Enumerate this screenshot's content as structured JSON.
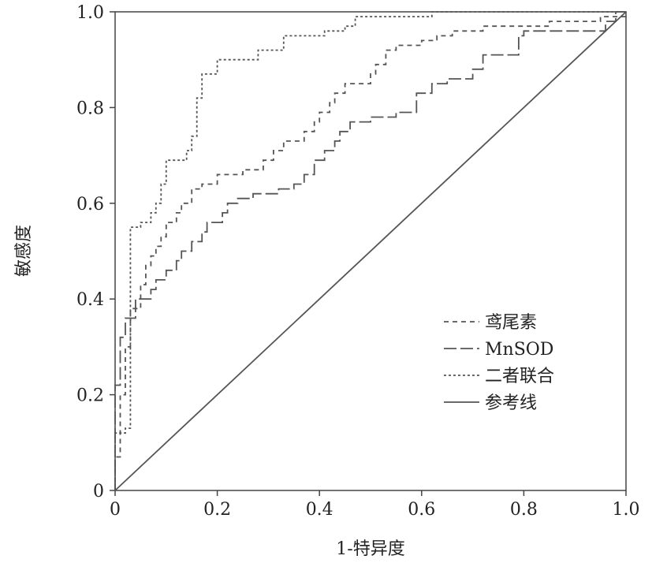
{
  "chart_data": {
    "type": "line",
    "title": "",
    "xlabel": "1-特异度",
    "ylabel": "敏感度",
    "xlim": [
      0,
      1
    ],
    "ylim": [
      0,
      1
    ],
    "x_ticks": [
      "0",
      "0.2",
      "0.4",
      "0.6",
      "0.8",
      "1.0"
    ],
    "y_ticks": [
      "0",
      "0.2",
      "0.4",
      "0.6",
      "0.8",
      "1.0"
    ],
    "grid": false,
    "legend_position": "bottom-right",
    "series": [
      {
        "name": "鸢尾素",
        "style": "dashed",
        "points": [
          [
            0,
            0
          ],
          [
            0,
            0.07
          ],
          [
            0.01,
            0.07
          ],
          [
            0.01,
            0.2
          ],
          [
            0.02,
            0.2
          ],
          [
            0.02,
            0.3
          ],
          [
            0.03,
            0.3
          ],
          [
            0.03,
            0.38
          ],
          [
            0.05,
            0.38
          ],
          [
            0.05,
            0.43
          ],
          [
            0.06,
            0.43
          ],
          [
            0.06,
            0.47
          ],
          [
            0.07,
            0.47
          ],
          [
            0.07,
            0.49
          ],
          [
            0.08,
            0.49
          ],
          [
            0.08,
            0.51
          ],
          [
            0.09,
            0.51
          ],
          [
            0.09,
            0.53
          ],
          [
            0.1,
            0.53
          ],
          [
            0.1,
            0.56
          ],
          [
            0.12,
            0.56
          ],
          [
            0.12,
            0.58
          ],
          [
            0.13,
            0.58
          ],
          [
            0.13,
            0.6
          ],
          [
            0.15,
            0.6
          ],
          [
            0.15,
            0.63
          ],
          [
            0.17,
            0.63
          ],
          [
            0.17,
            0.64
          ],
          [
            0.2,
            0.64
          ],
          [
            0.2,
            0.66
          ],
          [
            0.25,
            0.66
          ],
          [
            0.25,
            0.67
          ],
          [
            0.29,
            0.67
          ],
          [
            0.29,
            0.69
          ],
          [
            0.31,
            0.69
          ],
          [
            0.31,
            0.71
          ],
          [
            0.33,
            0.71
          ],
          [
            0.33,
            0.73
          ],
          [
            0.37,
            0.73
          ],
          [
            0.37,
            0.75
          ],
          [
            0.39,
            0.75
          ],
          [
            0.39,
            0.77
          ],
          [
            0.4,
            0.77
          ],
          [
            0.4,
            0.79
          ],
          [
            0.42,
            0.79
          ],
          [
            0.42,
            0.81
          ],
          [
            0.43,
            0.81
          ],
          [
            0.43,
            0.83
          ],
          [
            0.45,
            0.83
          ],
          [
            0.45,
            0.85
          ],
          [
            0.5,
            0.85
          ],
          [
            0.5,
            0.87
          ],
          [
            0.51,
            0.87
          ],
          [
            0.51,
            0.89
          ],
          [
            0.53,
            0.89
          ],
          [
            0.53,
            0.92
          ],
          [
            0.55,
            0.92
          ],
          [
            0.55,
            0.93
          ],
          [
            0.6,
            0.93
          ],
          [
            0.6,
            0.94
          ],
          [
            0.63,
            0.94
          ],
          [
            0.63,
            0.95
          ],
          [
            0.66,
            0.95
          ],
          [
            0.66,
            0.96
          ],
          [
            0.72,
            0.96
          ],
          [
            0.72,
            0.97
          ],
          [
            0.85,
            0.97
          ],
          [
            0.85,
            0.98
          ],
          [
            0.95,
            0.98
          ],
          [
            0.95,
            0.99
          ],
          [
            1,
            0.99
          ],
          [
            1,
            1
          ]
        ]
      },
      {
        "name": "MnSOD",
        "style": "long-dashed",
        "points": [
          [
            0,
            0
          ],
          [
            0,
            0.22
          ],
          [
            0.01,
            0.22
          ],
          [
            0.01,
            0.32
          ],
          [
            0.02,
            0.32
          ],
          [
            0.02,
            0.36
          ],
          [
            0.04,
            0.36
          ],
          [
            0.04,
            0.4
          ],
          [
            0.07,
            0.4
          ],
          [
            0.07,
            0.42
          ],
          [
            0.08,
            0.42
          ],
          [
            0.08,
            0.44
          ],
          [
            0.1,
            0.44
          ],
          [
            0.1,
            0.46
          ],
          [
            0.12,
            0.46
          ],
          [
            0.12,
            0.48
          ],
          [
            0.13,
            0.48
          ],
          [
            0.13,
            0.5
          ],
          [
            0.15,
            0.5
          ],
          [
            0.15,
            0.52
          ],
          [
            0.17,
            0.52
          ],
          [
            0.17,
            0.54
          ],
          [
            0.18,
            0.54
          ],
          [
            0.18,
            0.56
          ],
          [
            0.21,
            0.56
          ],
          [
            0.21,
            0.58
          ],
          [
            0.22,
            0.58
          ],
          [
            0.22,
            0.6
          ],
          [
            0.24,
            0.6
          ],
          [
            0.24,
            0.61
          ],
          [
            0.27,
            0.61
          ],
          [
            0.27,
            0.62
          ],
          [
            0.32,
            0.62
          ],
          [
            0.32,
            0.63
          ],
          [
            0.35,
            0.63
          ],
          [
            0.35,
            0.64
          ],
          [
            0.37,
            0.64
          ],
          [
            0.37,
            0.66
          ],
          [
            0.39,
            0.66
          ],
          [
            0.39,
            0.69
          ],
          [
            0.41,
            0.69
          ],
          [
            0.41,
            0.71
          ],
          [
            0.43,
            0.71
          ],
          [
            0.43,
            0.73
          ],
          [
            0.44,
            0.73
          ],
          [
            0.44,
            0.75
          ],
          [
            0.46,
            0.75
          ],
          [
            0.46,
            0.77
          ],
          [
            0.5,
            0.77
          ],
          [
            0.5,
            0.78
          ],
          [
            0.55,
            0.78
          ],
          [
            0.55,
            0.79
          ],
          [
            0.59,
            0.79
          ],
          [
            0.59,
            0.83
          ],
          [
            0.62,
            0.83
          ],
          [
            0.62,
            0.85
          ],
          [
            0.65,
            0.85
          ],
          [
            0.65,
            0.86
          ],
          [
            0.7,
            0.86
          ],
          [
            0.7,
            0.88
          ],
          [
            0.72,
            0.88
          ],
          [
            0.72,
            0.91
          ],
          [
            0.79,
            0.91
          ],
          [
            0.79,
            0.95
          ],
          [
            0.8,
            0.95
          ],
          [
            0.8,
            0.96
          ],
          [
            0.96,
            0.96
          ],
          [
            0.96,
            0.98
          ],
          [
            0.98,
            0.98
          ],
          [
            0.98,
            1
          ],
          [
            1,
            1
          ]
        ]
      },
      {
        "name": "二者联合",
        "style": "dotted",
        "points": [
          [
            0,
            0
          ],
          [
            0,
            0.12
          ],
          [
            0.02,
            0.12
          ],
          [
            0.02,
            0.13
          ],
          [
            0.03,
            0.13
          ],
          [
            0.03,
            0.55
          ],
          [
            0.05,
            0.55
          ],
          [
            0.05,
            0.56
          ],
          [
            0.07,
            0.56
          ],
          [
            0.07,
            0.58
          ],
          [
            0.08,
            0.58
          ],
          [
            0.08,
            0.6
          ],
          [
            0.09,
            0.6
          ],
          [
            0.09,
            0.64
          ],
          [
            0.1,
            0.64
          ],
          [
            0.1,
            0.69
          ],
          [
            0.14,
            0.69
          ],
          [
            0.14,
            0.71
          ],
          [
            0.15,
            0.71
          ],
          [
            0.15,
            0.74
          ],
          [
            0.16,
            0.74
          ],
          [
            0.16,
            0.82
          ],
          [
            0.17,
            0.82
          ],
          [
            0.17,
            0.87
          ],
          [
            0.2,
            0.87
          ],
          [
            0.2,
            0.9
          ],
          [
            0.28,
            0.9
          ],
          [
            0.28,
            0.92
          ],
          [
            0.33,
            0.92
          ],
          [
            0.33,
            0.95
          ],
          [
            0.41,
            0.95
          ],
          [
            0.41,
            0.96
          ],
          [
            0.45,
            0.96
          ],
          [
            0.45,
            0.97
          ],
          [
            0.47,
            0.97
          ],
          [
            0.47,
            0.99
          ],
          [
            0.62,
            0.99
          ],
          [
            0.62,
            1
          ],
          [
            1,
            1
          ]
        ]
      },
      {
        "name": "参考线",
        "style": "solid",
        "points": [
          [
            0,
            0
          ],
          [
            1,
            1
          ]
        ]
      }
    ]
  }
}
